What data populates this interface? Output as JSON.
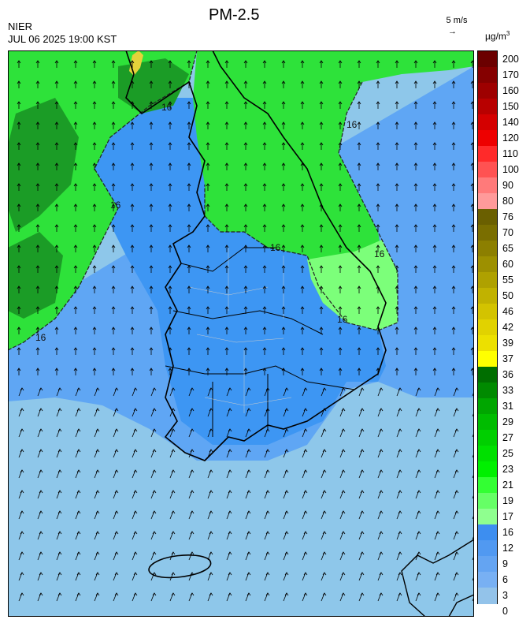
{
  "header": {
    "org": "NIER",
    "timestamp": "JUL 06 2025 19:00 KST",
    "title": "PM-2.5",
    "wind_reference": "5 m/s",
    "wind_reference_arrow": "→",
    "unit_base": "µg/m",
    "unit_exp": "3"
  },
  "map": {
    "region": "Korean Peninsula",
    "contour_label": "16",
    "colors": {
      "sea_low": "#8ec7ea",
      "low": "#3d96f3",
      "mid": "#5fa6f4",
      "green_light": "#7cff7a",
      "green": "#2ee23a",
      "green_dark": "#1b9c26",
      "yellow": "#e6d23a",
      "coast": "#000000"
    }
  },
  "legend": {
    "ticks": [
      "200",
      "170",
      "160",
      "150",
      "140",
      "120",
      "110",
      "100",
      "90",
      "80",
      "76",
      "70",
      "65",
      "60",
      "55",
      "50",
      "46",
      "42",
      "39",
      "37",
      "36",
      "33",
      "31",
      "29",
      "27",
      "25",
      "23",
      "21",
      "19",
      "17",
      "16",
      "12",
      "9",
      "6",
      "3",
      "0"
    ],
    "colors": [
      "#6b0000",
      "#850000",
      "#9e0000",
      "#b80000",
      "#d40000",
      "#ee0000",
      "#ff2a2a",
      "#ff5252",
      "#ff7a7a",
      "#ff9a9a",
      "#6a5f00",
      "#7a6e00",
      "#8c7f00",
      "#9d9000",
      "#afa100",
      "#c1b200",
      "#d3c300",
      "#e1d200",
      "#ece000",
      "#ffff00",
      "#006e00",
      "#008a00",
      "#00a600",
      "#00bc00",
      "#00cf00",
      "#00e000",
      "#00f000",
      "#33ff33",
      "#66ff66",
      "#8fff8f",
      "#3d8ef0",
      "#5199f1",
      "#64a4f2",
      "#78b0f3",
      "#93c3ea"
    ]
  }
}
